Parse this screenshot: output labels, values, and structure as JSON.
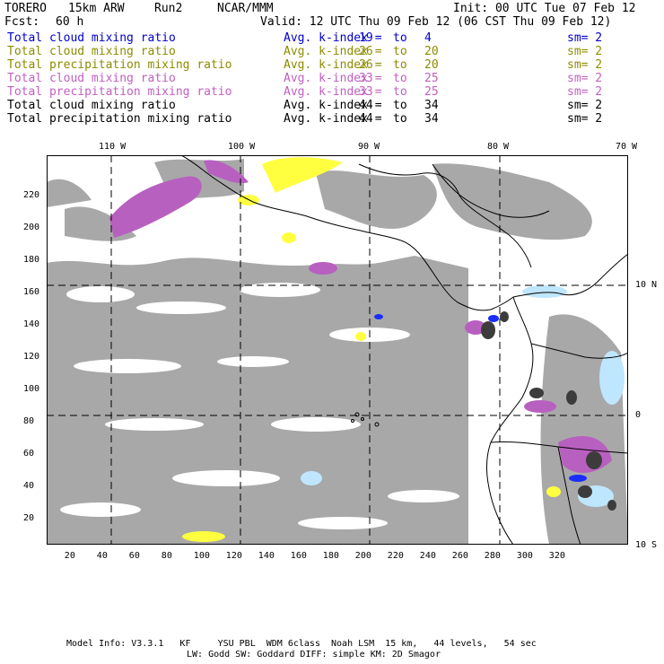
{
  "header": {
    "model": "TORERO",
    "resolution": "15km ARW",
    "run": "Run2",
    "org": "NCAR/MMM",
    "init": "Init: 00 UTC Tue 07 Feb 12",
    "fcst_label": "Fcst:",
    "fcst_value": "60 h",
    "valid": "Valid: 12 UTC Thu 09 Feb 12 (06 CST Thu 09 Feb 12)"
  },
  "legend": [
    {
      "field": "Total cloud mixing ratio",
      "index_label": "Avg. k-index =",
      "k_from": "19",
      "to": "to",
      "k_to": "4",
      "sm": "sm= 2",
      "color": "#0000cc"
    },
    {
      "field": "Total cloud mixing ratio",
      "index_label": "Avg. k-index =",
      "k_from": "26",
      "to": "to",
      "k_to": "20",
      "sm": "sm= 2",
      "color": "#8c8c00"
    },
    {
      "field": "Total precipitation mixing ratio",
      "index_label": "Avg. k-index =",
      "k_from": "26",
      "to": "to",
      "k_to": "20",
      "sm": "sm= 2",
      "color": "#8c8c00"
    },
    {
      "field": "Total cloud mixing ratio",
      "index_label": "Avg. k-index =",
      "k_from": "33",
      "to": "to",
      "k_to": "25",
      "sm": "sm= 2",
      "color": "#c060c0"
    },
    {
      "field": "Total precipitation mixing ratio",
      "index_label": "Avg. k-index =",
      "k_from": "33",
      "to": "to",
      "k_to": "25",
      "sm": "sm= 2",
      "color": "#c060c0"
    },
    {
      "field": "Total cloud mixing ratio",
      "index_label": "Avg. k-index =",
      "k_from": "44",
      "to": "to",
      "k_to": "34",
      "sm": "sm= 2",
      "color": "#000000"
    },
    {
      "field": "Total precipitation mixing ratio",
      "index_label": "Avg. k-index =",
      "k_from": "44",
      "to": "to",
      "k_to": "34",
      "sm": "sm= 2",
      "color": "#000000"
    }
  ],
  "map": {
    "lon_labels": [
      "110 W",
      "100 W",
      "90 W",
      "80 W",
      "70 W"
    ],
    "lat_labels": [
      "10 N",
      "0",
      "10 S"
    ],
    "x_ticks": [
      "20",
      "40",
      "60",
      "80",
      "100",
      "120",
      "140",
      "160",
      "180",
      "200",
      "220",
      "240",
      "260",
      "280",
      "300",
      "320"
    ],
    "y_ticks": [
      "220",
      "200",
      "180",
      "160",
      "140",
      "120",
      "100",
      "80",
      "60",
      "40",
      "20"
    ],
    "colors": {
      "cloud_gray": "#a8a8a8",
      "dark_core": "#3c3c3c",
      "magenta": "#b860c0",
      "yellow": "#ffff40",
      "light_blue": "#bfe6ff",
      "blue": "#1a2dff"
    }
  },
  "footer": {
    "line1": "Model Info: V3.3.1   KF     YSU PBL  WDM 6class  Noah LSM  15 km,   44 levels,   54 sec",
    "line2": "LW: Godd SW: Goddard DIFF: simple KM: 2D Smagor"
  }
}
